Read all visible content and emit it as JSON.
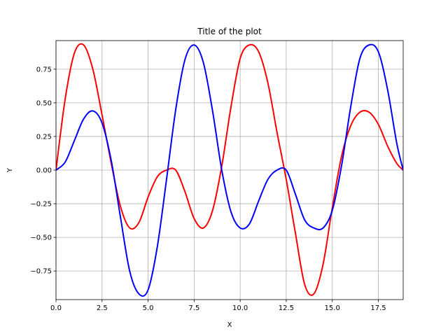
{
  "chart_data": {
    "type": "line",
    "title": "Title of the plot",
    "xlabel": "X",
    "ylabel": "Y",
    "xlim": [
      0,
      18.85
    ],
    "ylim": [
      -0.9625,
      0.9625
    ],
    "grid": true,
    "x_ticks": [
      0.0,
      2.5,
      5.0,
      7.5,
      10.0,
      12.5,
      15.0,
      17.5
    ],
    "x_tick_labels": [
      "0.0",
      "2.5",
      "5.0",
      "7.5",
      "10.0",
      "12.5",
      "15.0",
      "17.5"
    ],
    "y_ticks": [
      -0.75,
      -0.5,
      -0.25,
      0.0,
      0.25,
      0.5,
      0.75
    ],
    "y_tick_labels": [
      "−0.75",
      "−0.50",
      "−0.25",
      "0.00",
      "0.25",
      "0.50",
      "0.75"
    ],
    "series": [
      {
        "color": "#ff0000",
        "x": [
          0,
          0.5,
          1,
          1.5,
          2,
          2.5,
          3,
          3.5,
          4,
          4.5,
          5,
          5.5,
          6,
          6.5,
          7,
          7.5,
          8,
          8.5,
          9,
          9.5,
          10,
          10.5,
          11,
          11.5,
          12,
          12.5,
          13,
          13.5,
          14,
          14.5,
          15,
          15.5,
          16,
          16.5,
          17,
          17.5,
          18,
          18.5,
          18.85
        ],
        "y": [
          0,
          0.53,
          0.87,
          0.93,
          0.75,
          0.41,
          0.05,
          -0.27,
          -0.43,
          -0.39,
          -0.2,
          -0.05,
          0.0,
          0.0,
          -0.16,
          -0.36,
          -0.43,
          -0.3,
          0.03,
          0.47,
          0.83,
          0.93,
          0.88,
          0.65,
          0.28,
          -0.07,
          -0.47,
          -0.85,
          -0.92,
          -0.7,
          -0.28,
          0.1,
          0.33,
          0.43,
          0.43,
          0.34,
          0.18,
          0.05,
          0.0
        ]
      },
      {
        "color": "#0000ff",
        "x": [
          0,
          0.5,
          1,
          1.5,
          2,
          2.5,
          3,
          3.5,
          4,
          4.5,
          5,
          5.5,
          6,
          6.5,
          7,
          7.5,
          8,
          8.5,
          9,
          9.5,
          10,
          10.5,
          11,
          11.5,
          12,
          12.5,
          13,
          13.5,
          14,
          14.5,
          15,
          15.5,
          16,
          16.5,
          17,
          17.5,
          18,
          18.5,
          18.85
        ],
        "y": [
          0,
          0.06,
          0.22,
          0.38,
          0.44,
          0.35,
          0.07,
          -0.35,
          -0.75,
          -0.92,
          -0.89,
          -0.57,
          -0.07,
          0.45,
          0.82,
          0.93,
          0.8,
          0.44,
          0.0,
          -0.31,
          -0.43,
          -0.4,
          -0.23,
          -0.07,
          0.0,
          0.0,
          -0.18,
          -0.37,
          -0.43,
          -0.43,
          -0.3,
          0.03,
          0.47,
          0.83,
          0.93,
          0.88,
          0.6,
          0.2,
          0.0
        ]
      }
    ]
  }
}
